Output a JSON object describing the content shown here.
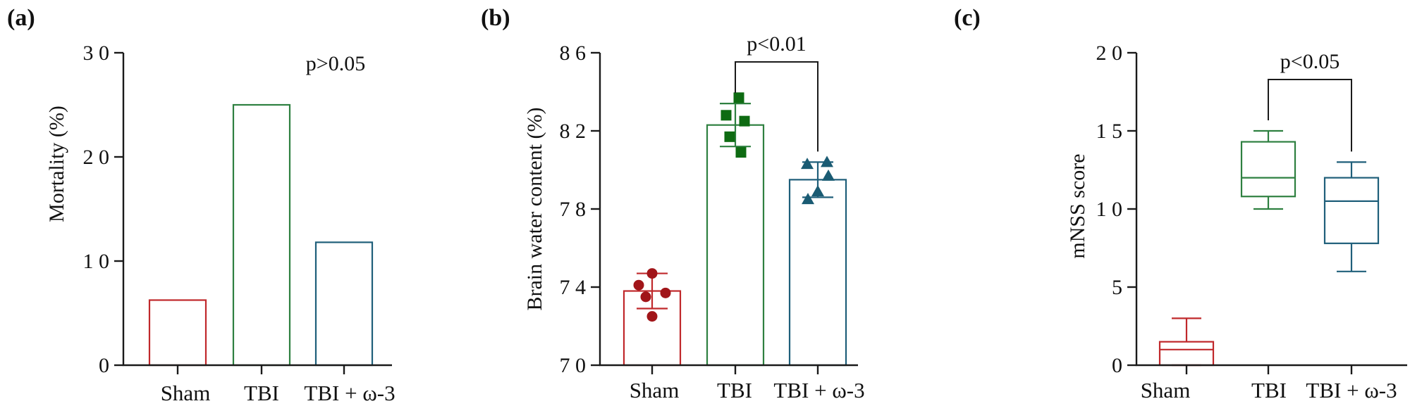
{
  "colors": {
    "sham": "#c0282b",
    "tbi": "#2e8040",
    "omega": "#1f5f7a",
    "sham_marker": "#a11519",
    "tbi_marker": "#0e6b12",
    "omega_marker": "#1a5b73"
  },
  "panels": {
    "a": {
      "label": "(a)"
    },
    "b": {
      "label": "(b)"
    },
    "c": {
      "label": "(c)"
    }
  },
  "chart_data": [
    {
      "id": "a",
      "type": "bar",
      "title": "",
      "ylabel": "Mortality (%)",
      "xlabel": "",
      "ylim": [
        0,
        30
      ],
      "yticks": [
        0,
        10,
        20,
        30
      ],
      "ytick_labels": [
        "0",
        "1 0",
        "2 0",
        "3 0"
      ],
      "categories": [
        "Sham",
        "TBI",
        "TBI + ω-3"
      ],
      "values": [
        6.25,
        25,
        11.8
      ],
      "annotation": "p>0.05"
    },
    {
      "id": "b",
      "type": "bar",
      "title": "",
      "ylabel": "Brain water content (%)",
      "xlabel": "",
      "ylim": [
        70,
        86
      ],
      "yticks": [
        70,
        74,
        78,
        82,
        86
      ],
      "ytick_labels": [
        "7 0",
        "7 4",
        "7 8",
        "8 2",
        "8 6"
      ],
      "categories": [
        "Sham",
        "TBI",
        "TBI + ω-3"
      ],
      "values": [
        73.8,
        82.3,
        79.5
      ],
      "errors": [
        0.9,
        1.1,
        0.9
      ],
      "points": [
        [
          74.7,
          74.1,
          73.7,
          73.5,
          72.5
        ],
        [
          83.7,
          82.8,
          82.5,
          81.7,
          80.9
        ],
        [
          80.4,
          80.3,
          79.7,
          78.9,
          78.5
        ]
      ],
      "markers": [
        "circle",
        "square",
        "triangle"
      ],
      "comparison": {
        "from": 1,
        "to": 2,
        "text": "p<0.01"
      }
    },
    {
      "id": "c",
      "type": "box",
      "title": "",
      "ylabel": "mNSS score",
      "xlabel": "",
      "ylim": [
        0,
        20
      ],
      "yticks": [
        0,
        5,
        10,
        15,
        20
      ],
      "ytick_labels": [
        "0",
        "5",
        "1 0",
        "1 5",
        "2 0"
      ],
      "categories": [
        "Sham",
        "TBI",
        "TBI + ω-3"
      ],
      "boxes": [
        {
          "min": 0,
          "q1": 0,
          "median": 1,
          "q3": 1.5,
          "max": 3
        },
        {
          "min": 10,
          "q1": 10.8,
          "median": 12,
          "q3": 14.3,
          "max": 15
        },
        {
          "min": 6,
          "q1": 7.8,
          "median": 10.5,
          "q3": 12,
          "max": 13
        }
      ],
      "comparison": {
        "from": 1,
        "to": 2,
        "text": "p<0.05"
      }
    }
  ]
}
